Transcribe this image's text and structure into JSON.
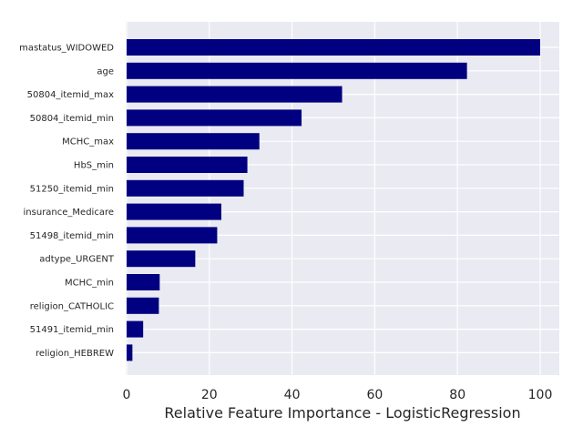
{
  "chart_data": {
    "type": "bar",
    "orientation": "horizontal",
    "title": "",
    "xlabel": "Relative Feature Importance - LogisticRegression",
    "ylabel": "",
    "xlim": [
      0,
      105
    ],
    "xticks": [
      0,
      20,
      40,
      60,
      80,
      100
    ],
    "grid": true,
    "bar_color": "#000080",
    "background_color": "#eaeaf2",
    "categories": [
      "mastatus_WIDOWED",
      "age",
      "50804_itemid_max",
      "50804_itemid_min",
      "MCHC_max",
      "HbS_min",
      "51250_itemid_min",
      "insurance_Medicare",
      "51498_itemid_min",
      "adtype_URGENT",
      "MCHC_min",
      "religion_CATHOLIC",
      "51491_itemid_min",
      "religion_HEBREW"
    ],
    "values": [
      100,
      82.3,
      52.1,
      42.3,
      32.1,
      29.2,
      28.3,
      22.9,
      21.9,
      16.6,
      8.0,
      7.8,
      4.0,
      1.4
    ]
  }
}
